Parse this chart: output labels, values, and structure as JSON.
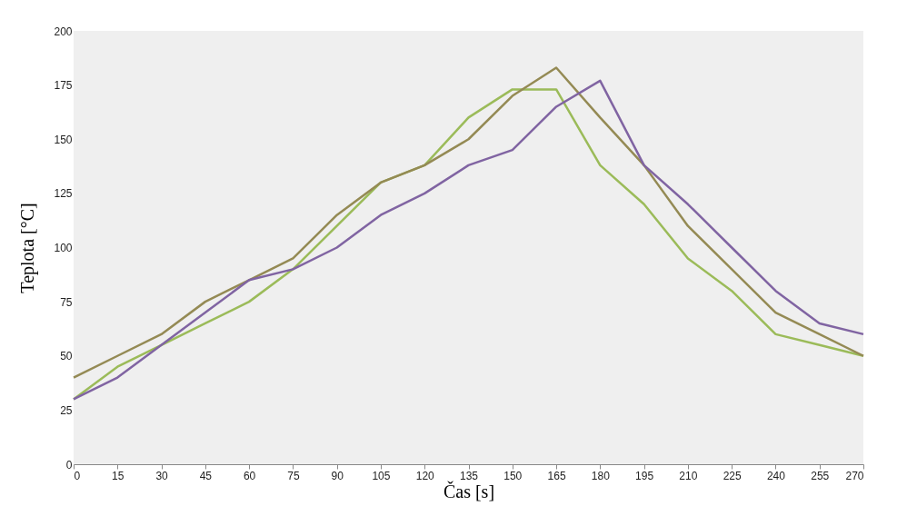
{
  "chart_data": {
    "type": "line",
    "xlabel": "Čas [s]",
    "ylabel": "Teplota [°C]",
    "x": [
      0,
      15,
      30,
      45,
      60,
      75,
      90,
      105,
      120,
      135,
      150,
      165,
      180,
      195,
      210,
      225,
      240,
      255,
      270
    ],
    "series": [
      {
        "color": "#9bbb59",
        "values": [
          30,
          45,
          55,
          65,
          75,
          90,
          110,
          130,
          138,
          160,
          173,
          173,
          138,
          120,
          95,
          80,
          60,
          55,
          50
        ]
      },
      {
        "color": "#948a54",
        "values": [
          40,
          50,
          60,
          75,
          85,
          95,
          115,
          130,
          138,
          150,
          170,
          183,
          160,
          138,
          110,
          90,
          70,
          60,
          50
        ]
      },
      {
        "color": "#8064a2",
        "values": [
          30,
          40,
          55,
          70,
          85,
          90,
          100,
          115,
          125,
          138,
          145,
          165,
          177,
          138,
          120,
          100,
          80,
          65,
          60
        ]
      }
    ],
    "xlim": [
      0,
      270
    ],
    "xticks": [
      0,
      15,
      30,
      45,
      60,
      75,
      90,
      105,
      120,
      135,
      150,
      165,
      180,
      195,
      210,
      225,
      240,
      255,
      270
    ],
    "ylim": [
      0,
      200
    ],
    "yticks": [
      0,
      25,
      50,
      75,
      100,
      125,
      150,
      175,
      200
    ],
    "grid": false,
    "legend": false,
    "marker": "none",
    "line_style": "solid"
  }
}
